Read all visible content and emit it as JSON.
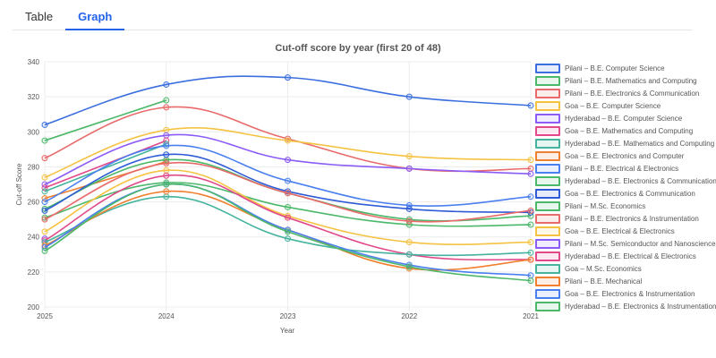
{
  "tabs": [
    {
      "label": "Table",
      "active": false
    },
    {
      "label": "Graph",
      "active": true
    }
  ],
  "chart_data": {
    "type": "line",
    "title": "Cut-off score by year (first 20 of 48)",
    "xlabel": "Year",
    "ylabel": "Cut-off Score",
    "categories": [
      "2025",
      "2024",
      "2023",
      "2022",
      "2021"
    ],
    "ylim": [
      200,
      340
    ],
    "yticks": [
      200,
      220,
      240,
      260,
      280,
      300,
      320,
      340
    ],
    "grid": true,
    "legend_position": "right",
    "series": [
      {
        "name": "Pilani – B.E. Computer Science",
        "color": "#3b6fe0",
        "values": [
          304,
          327,
          331,
          320,
          315
        ]
      },
      {
        "name": "Pilani – B.E. Mathematics and Computing",
        "color": "#4cb86a",
        "values": [
          295,
          318,
          null,
          null,
          null
        ]
      },
      {
        "name": "Pilani – B.E. Electronics & Communication",
        "color": "#e86a6a",
        "values": [
          285,
          314,
          296,
          279,
          279
        ]
      },
      {
        "name": "Goa – B.E. Computer Science",
        "color": "#f5c242",
        "values": [
          274,
          301,
          295,
          286,
          284
        ]
      },
      {
        "name": "Hyderabad – B.E. Computer Science",
        "color": "#8b5cf6",
        "values": [
          270,
          298,
          284,
          279,
          276
        ]
      },
      {
        "name": "Goa – B.E. Mathematics and Computing",
        "color": "#e0498a",
        "values": [
          268,
          295,
          null,
          null,
          null
        ]
      },
      {
        "name": "Hyderabad – B.E. Mathematics and Computing",
        "color": "#45b39d",
        "values": [
          266,
          293,
          null,
          null,
          null
        ]
      },
      {
        "name": "Goa – B.E. Electronics and Computer",
        "color": "#f07f2f",
        "values": [
          262,
          283,
          null,
          null,
          null
        ]
      },
      {
        "name": "Pilani – B.E. Electrical & Electronics",
        "color": "#4a7ff0",
        "values": [
          260,
          292,
          272,
          258,
          263
        ]
      },
      {
        "name": "Hyderabad – B.E. Electronics & Communication",
        "color": "#4cb86a",
        "values": [
          256,
          284,
          265,
          250,
          252
        ]
      },
      {
        "name": "Goa – B.E. Electronics & Communication",
        "color": "#2f5bd6",
        "values": [
          255,
          287,
          266,
          256,
          254
        ]
      },
      {
        "name": "Pilani – M.Sc. Economics",
        "color": "#4cb86a",
        "values": [
          251,
          271,
          257,
          247,
          247
        ]
      },
      {
        "name": "Pilani – B.E. Electronics & Instrumentation",
        "color": "#e86a6a",
        "values": [
          250,
          282,
          265,
          249,
          255
        ]
      },
      {
        "name": "Goa – B.E. Electrical & Electronics",
        "color": "#f5c242",
        "values": [
          243,
          278,
          252,
          237,
          237
        ]
      },
      {
        "name": "Pilani – M.Sc. Semiconductor and Nanoscience",
        "color": "#8b5cf6",
        "values": [
          239,
          null,
          null,
          null,
          null
        ]
      },
      {
        "name": "Hyderabad – B.E. Electrical & Electronics",
        "color": "#e0498a",
        "values": [
          238,
          275,
          251,
          230,
          227
        ]
      },
      {
        "name": "Goa – M.Sc. Economics",
        "color": "#45b39d",
        "values": [
          237,
          263,
          239,
          230,
          231
        ]
      },
      {
        "name": "Pilani – B.E. Mechanical",
        "color": "#f07f2f",
        "values": [
          235,
          266,
          244,
          222,
          227
        ]
      },
      {
        "name": "Goa – B.E. Electronics & Instrumentation",
        "color": "#4a7ff0",
        "values": [
          234,
          270,
          244,
          224,
          218
        ]
      },
      {
        "name": "Hyderabad – B.E. Electronics & Instrumentation",
        "color": "#4cb86a",
        "values": [
          232,
          270,
          243,
          223,
          215
        ]
      }
    ]
  }
}
